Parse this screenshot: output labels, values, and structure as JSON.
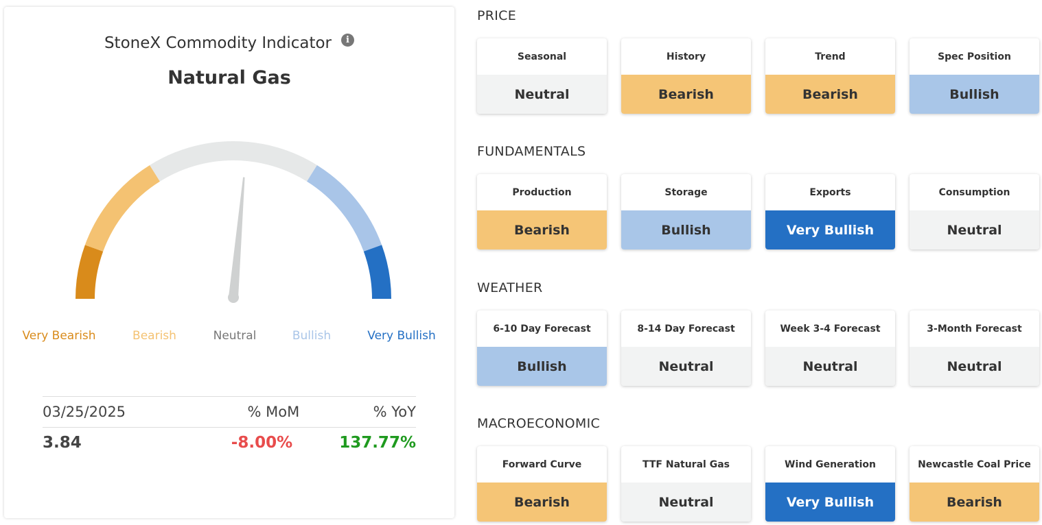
{
  "indicator": {
    "title": "StoneX Commodity Indicator",
    "info_icon": "info-icon",
    "commodity": "Natural Gas"
  },
  "gauge": {
    "needle_value": 0.53,
    "labels": [
      "Very Bearish",
      "Bearish",
      "Neutral",
      "Bullish",
      "Very Bullish"
    ],
    "colors": {
      "very_bearish": "#d98b1b",
      "bearish": "#f4c272",
      "neutral": "#e6e8e8",
      "bullish": "#a9c5e8",
      "very_bullish": "#2470c4",
      "needle": "#cfd1d1"
    }
  },
  "stats": {
    "date": "03/25/2025",
    "mom_header": "% MoM",
    "yoy_header": "% YoY",
    "price": "3.84",
    "mom": "-8.00%",
    "yoy": "137.77%"
  },
  "sections": [
    {
      "title": "PRICE",
      "tiles": [
        {
          "label": "Seasonal",
          "status": "Neutral",
          "style": "neutral"
        },
        {
          "label": "History",
          "status": "Bearish",
          "style": "bearish"
        },
        {
          "label": "Trend",
          "status": "Bearish",
          "style": "bearish"
        },
        {
          "label": "Spec Position",
          "status": "Bullish",
          "style": "bullish"
        }
      ]
    },
    {
      "title": "FUNDAMENTALS",
      "tiles": [
        {
          "label": "Production",
          "status": "Bearish",
          "style": "bearish"
        },
        {
          "label": "Storage",
          "status": "Bullish",
          "style": "bullish"
        },
        {
          "label": "Exports",
          "status": "Very Bullish",
          "style": "vbullish"
        },
        {
          "label": "Consumption",
          "status": "Neutral",
          "style": "neutral"
        }
      ]
    },
    {
      "title": "WEATHER",
      "tiles": [
        {
          "label": "6-10 Day Forecast",
          "status": "Bullish",
          "style": "bullish"
        },
        {
          "label": "8-14 Day Forecast",
          "status": "Neutral",
          "style": "neutral"
        },
        {
          "label": "Week 3-4 Forecast",
          "status": "Neutral",
          "style": "neutral"
        },
        {
          "label": "3-Month Forecast",
          "status": "Neutral",
          "style": "neutral"
        }
      ]
    },
    {
      "title": "MACROECONOMIC",
      "tiles": [
        {
          "label": "Forward Curve",
          "status": "Bearish",
          "style": "bearish"
        },
        {
          "label": "TTF Natural Gas",
          "status": "Neutral",
          "style": "neutral"
        },
        {
          "label": "Wind Generation",
          "status": "Very Bullish",
          "style": "vbullish"
        },
        {
          "label": "Newcastle Coal Price",
          "status": "Bearish",
          "style": "bearish"
        }
      ]
    }
  ]
}
